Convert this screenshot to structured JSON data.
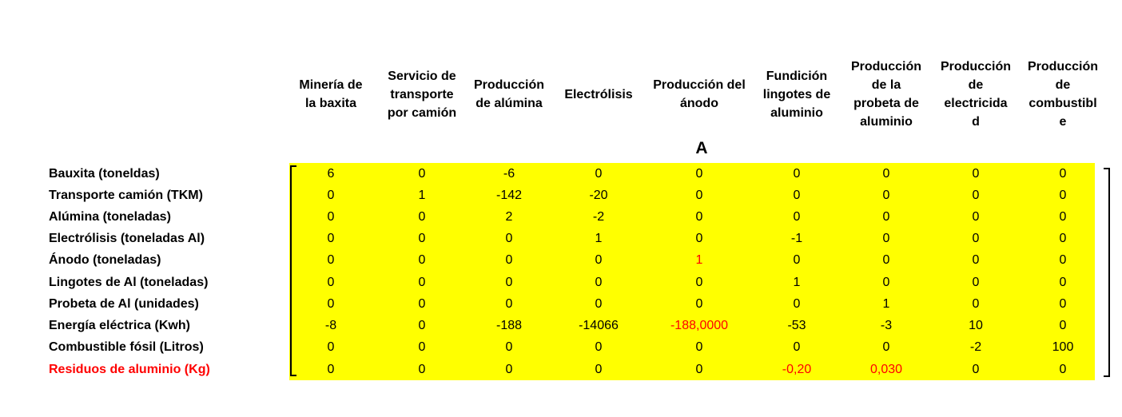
{
  "matrix_label": "A",
  "columns": [
    "Minería de\nla baxita",
    "Servicio de\ntransporte\npor camión",
    "Producción\nde alúmina",
    "Electrólisis",
    "Producción del\nánodo",
    "Fundición\nlingotes de\naluminio",
    "Producción\nde la\nprobeta de\naluminio",
    "Producción\nde\nelectricida\nd",
    "Producción\nde\ncombustibl\ne"
  ],
  "rows": [
    {
      "label": "Bauxita (toneldas)",
      "label_color": "#000000",
      "values": [
        "6",
        "0",
        "-6",
        "0",
        "0",
        "0",
        "0",
        "0",
        "0"
      ]
    },
    {
      "label": "Transporte camión (TKM)",
      "label_color": "#000000",
      "values": [
        "0",
        "1",
        "-142",
        "-20",
        "0",
        "0",
        "0",
        "0",
        "0"
      ]
    },
    {
      "label": "Alúmina (toneladas)",
      "label_color": "#000000",
      "values": [
        "0",
        "0",
        "2",
        "-2",
        "0",
        "0",
        "0",
        "0",
        "0"
      ]
    },
    {
      "label": "Electrólisis (toneladas Al)",
      "label_color": "#000000",
      "values": [
        "0",
        "0",
        "0",
        "1",
        "0",
        "-1",
        "0",
        "0",
        "0"
      ]
    },
    {
      "label": "Ánodo (toneladas)",
      "label_color": "#000000",
      "values": [
        "0",
        "0",
        "0",
        "0",
        "1",
        "0",
        "0",
        "0",
        "0"
      ],
      "red_cells": [
        4
      ]
    },
    {
      "label": "Lingotes de Al (toneladas)",
      "label_color": "#000000",
      "values": [
        "0",
        "0",
        "0",
        "0",
        "0",
        "1",
        "0",
        "0",
        "0"
      ]
    },
    {
      "label": "Probeta de Al (unidades)",
      "label_color": "#000000",
      "values": [
        "0",
        "0",
        "0",
        "0",
        "0",
        "0",
        "1",
        "0",
        "0"
      ]
    },
    {
      "label": "Energía eléctrica (Kwh)",
      "label_color": "#000000",
      "values": [
        "-8",
        "0",
        "-188",
        "-14066",
        "-188,0000",
        "-53",
        "-3",
        "10",
        "0"
      ],
      "red_cells": [
        4
      ]
    },
    {
      "label": "Combustible fósil (Litros)",
      "label_color": "#000000",
      "values": [
        "0",
        "0",
        "0",
        "0",
        "0",
        "0",
        "0",
        "-2",
        "100"
      ]
    },
    {
      "label": "Residuos de aluminio (Kg)",
      "label_color": "#ff0000",
      "values": [
        "0",
        "0",
        "0",
        "0",
        "0",
        "-0,20",
        "0,030",
        "0",
        "0"
      ],
      "red_cells": [
        5,
        6
      ]
    }
  ],
  "colors": {
    "cell_background": "#ffff00",
    "highlight_text": "#ff0000",
    "default_text": "#000000"
  }
}
